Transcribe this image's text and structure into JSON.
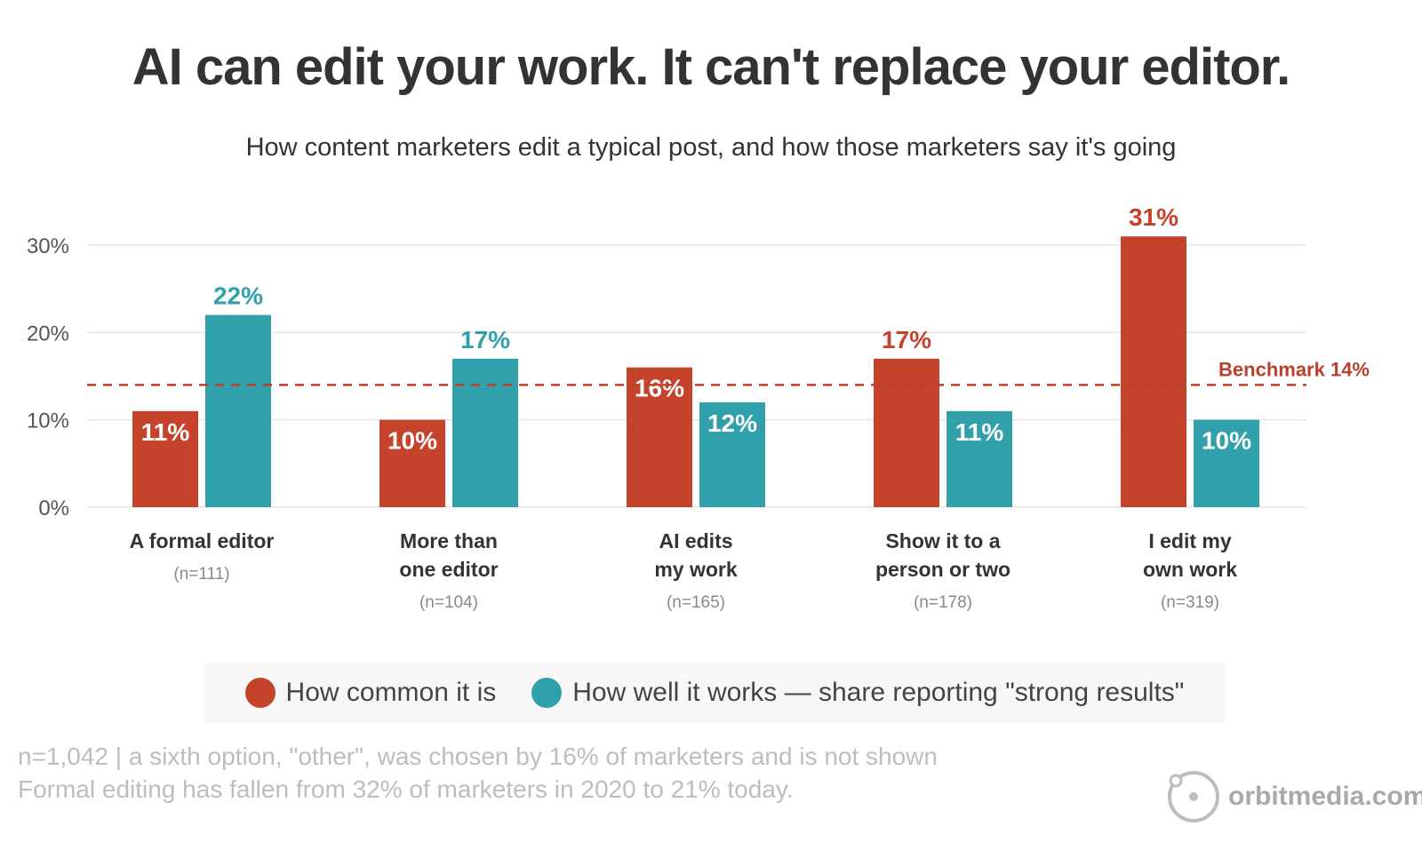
{
  "title": "AI can edit your work. It can't replace your editor.",
  "subtitle": "How content marketers edit a typical post, and how those marketers say it's going",
  "colors": {
    "common": "#c6432b",
    "works": "#30a1ab",
    "benchmark": "#b8402c",
    "grid": "#e5e5e5",
    "axis_text": "#555555",
    "n_text": "#888888"
  },
  "chart_data": {
    "type": "bar",
    "categories": [
      [
        "A formal editor"
      ],
      [
        "More than",
        "one editor"
      ],
      [
        "AI edits",
        "my work"
      ],
      [
        "Show it to a",
        "person or two"
      ],
      [
        "I edit my",
        "own work"
      ]
    ],
    "sample_sizes": [
      "(n=111)",
      "(n=104)",
      "(n=165)",
      "(n=178)",
      "(n=319)"
    ],
    "series": [
      {
        "name": "How common it is",
        "values": [
          11,
          10,
          16,
          17,
          31
        ]
      },
      {
        "name": "How well it works — share reporting \"strong results\"",
        "values": [
          22,
          17,
          12,
          11,
          10
        ]
      }
    ],
    "data_labels": [
      [
        "11%",
        "10%",
        "16%",
        "17%",
        "31%"
      ],
      [
        "22%",
        "17%",
        "12%",
        "11%",
        "10%"
      ]
    ],
    "ylim": [
      0,
      30
    ],
    "yticks": [
      0,
      10,
      20,
      30
    ],
    "ytick_labels": [
      "0%",
      "10%",
      "20%",
      "30%"
    ],
    "benchmark": {
      "value": 14,
      "label": "Benchmark 14%"
    },
    "grid": true,
    "legend_position": "bottom"
  },
  "legend": {
    "common_label": "How common it is",
    "works_label": "How well it works — share reporting \"strong results\""
  },
  "footnotes": {
    "line1": "n=1,042 | a sixth option, \"other\", was chosen by 16% of marketers and is not shown",
    "line2": "Formal editing has fallen from 32% of marketers in 2020 to 21% today."
  },
  "brand": {
    "text": "orbitmedia.com",
    "icon": "orbit-logo-icon"
  }
}
